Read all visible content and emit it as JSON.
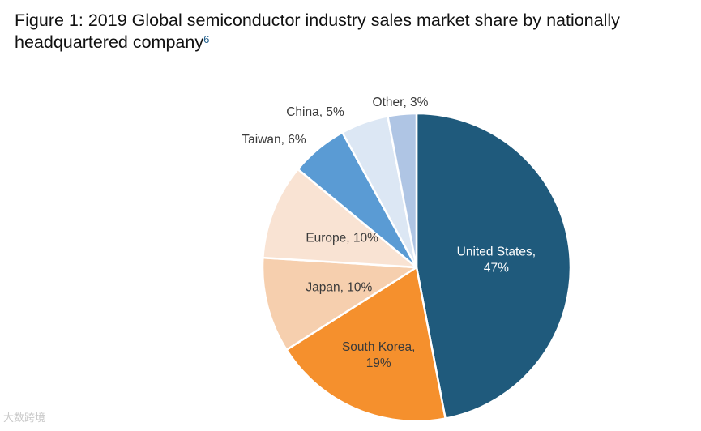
{
  "header": {
    "title": "Figure 1: 2019 Global semiconductor industry sales market share by nationally headquartered company",
    "footnote": "6"
  },
  "watermark": "大数跨境",
  "chart_data": {
    "type": "pie",
    "title": "2019 Global semiconductor industry sales market share by nationally headquartered company",
    "start": "12 o'clock, clockwise",
    "slices": [
      {
        "label": "United States",
        "value": 47,
        "display": "United States,\n47%",
        "color": "#1f5a7c",
        "text_color": "#ffffff"
      },
      {
        "label": "South Korea",
        "value": 19,
        "display": "South Korea,\n19%",
        "color": "#f5902d",
        "text_color": "#3a3a3a"
      },
      {
        "label": "Japan",
        "value": 10,
        "display": "Japan, 10%",
        "color": "#f6cfae",
        "text_color": "#3a3a3a"
      },
      {
        "label": "Europe",
        "value": 10,
        "display": "Europe, 10%",
        "color": "#f9e3d3",
        "text_color": "#3a3a3a"
      },
      {
        "label": "Taiwan",
        "value": 6,
        "display": "Taiwan, 6%",
        "color": "#5a9bd4",
        "text_color": "#3a3a3a"
      },
      {
        "label": "China",
        "value": 5,
        "display": "China, 5%",
        "color": "#dce7f4",
        "text_color": "#3a3a3a"
      },
      {
        "label": "Other",
        "value": 3,
        "display": "Other, 3%",
        "color": "#afc5e4",
        "text_color": "#3a3a3a"
      }
    ]
  }
}
